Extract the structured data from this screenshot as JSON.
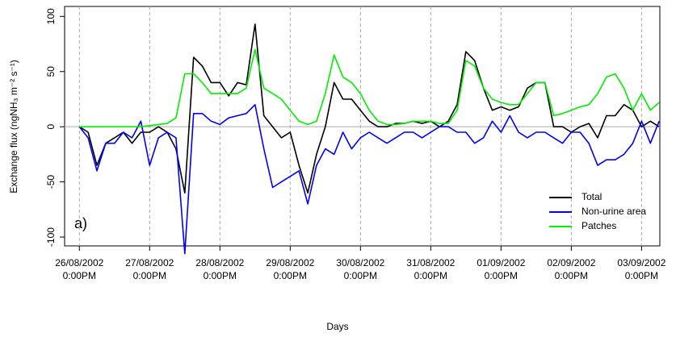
{
  "chart_data": {
    "type": "line",
    "xlabel": "Days",
    "ylabel": "Exchange flux (ngNH₃ m⁻² s⁻¹)",
    "annotation": "a)",
    "legend": "bottomright",
    "grid": true,
    "xlim": [
      -0.21,
      8.26
    ],
    "ylim": [
      -108,
      109
    ],
    "xticks": [
      {
        "value": 0,
        "label": "26/08/2002\n0:00PM"
      },
      {
        "value": 1,
        "label": "27/08/2002\n0:00PM"
      },
      {
        "value": 2,
        "label": "28/08/2002\n0:00PM"
      },
      {
        "value": 3,
        "label": "29/08/2002\n0:00PM"
      },
      {
        "value": 4,
        "label": "30/08/2002\n0:00PM"
      },
      {
        "value": 5,
        "label": "31/08/2002\n0:00PM"
      },
      {
        "value": 6,
        "label": "01/09/2002\n0:00PM"
      },
      {
        "value": 7,
        "label": "02/09/2002\n0:00PM"
      },
      {
        "value": 8,
        "label": "03/09/2002\n0:00PM"
      }
    ],
    "yticks": [
      -100,
      -50,
      0,
      50,
      100
    ],
    "x": [
      0,
      0.125,
      0.25,
      0.375,
      0.5,
      0.625,
      0.75,
      0.875,
      1,
      1.125,
      1.25,
      1.375,
      1.5,
      1.625,
      1.75,
      1.875,
      2,
      2.125,
      2.25,
      2.375,
      2.5,
      2.625,
      2.75,
      2.875,
      3,
      3.125,
      3.25,
      3.375,
      3.5,
      3.625,
      3.75,
      3.875,
      4,
      4.125,
      4.25,
      4.375,
      4.5,
      4.625,
      4.75,
      4.875,
      5,
      5.125,
      5.25,
      5.375,
      5.5,
      5.625,
      5.75,
      5.875,
      6,
      6.125,
      6.25,
      6.375,
      6.5,
      6.625,
      6.75,
      6.875,
      7,
      7.125,
      7.25,
      7.375,
      7.5,
      7.625,
      7.75,
      7.875,
      8,
      8.125,
      8.25
    ],
    "series": [
      {
        "name": "Total",
        "color": "#000000",
        "values": [
          0,
          -5,
          -35,
          -15,
          -10,
          -5,
          -15,
          -5,
          -5,
          0,
          -5,
          -20,
          -60,
          63,
          55,
          40,
          40,
          28,
          40,
          38,
          93,
          10,
          0,
          -10,
          -5,
          -35,
          -60,
          -25,
          0,
          40,
          25,
          25,
          15,
          5,
          0,
          0,
          3,
          3,
          5,
          3,
          5,
          0,
          5,
          20,
          68,
          60,
          35,
          15,
          18,
          15,
          18,
          35,
          40,
          40,
          0,
          0,
          -5,
          0,
          3,
          -10,
          10,
          10,
          20,
          15,
          0,
          5,
          0
        ]
      },
      {
        "name": "Non-urine area",
        "color": "#0000ff",
        "values": [
          0,
          -10,
          -40,
          -15,
          -15,
          -5,
          -10,
          5,
          -35,
          -10,
          -5,
          -10,
          -115,
          12,
          12,
          5,
          2,
          8,
          10,
          12,
          20,
          -20,
          -55,
          -50,
          -45,
          -40,
          -70,
          -35,
          -20,
          -25,
          -5,
          -20,
          -10,
          -5,
          -10,
          -15,
          -10,
          -5,
          -5,
          -10,
          -5,
          0,
          0,
          -5,
          -5,
          -15,
          -10,
          5,
          -5,
          10,
          -5,
          -10,
          -5,
          -5,
          -10,
          -15,
          -5,
          -5,
          -15,
          -35,
          -30,
          -30,
          -25,
          -15,
          5,
          -15,
          5
        ]
      },
      {
        "name": "Patches",
        "color": "#00ee00",
        "values": [
          0,
          0,
          0,
          0,
          0,
          0,
          0,
          0,
          1,
          2,
          3,
          8,
          48,
          48,
          40,
          30,
          30,
          30,
          30,
          35,
          70,
          35,
          30,
          25,
          15,
          5,
          2,
          5,
          30,
          65,
          45,
          40,
          30,
          15,
          5,
          2,
          2,
          3,
          5,
          5,
          5,
          3,
          3,
          15,
          60,
          55,
          35,
          25,
          22,
          20,
          20,
          30,
          40,
          40,
          10,
          12,
          15,
          18,
          20,
          30,
          45,
          48,
          35,
          15,
          30,
          15,
          22
        ]
      }
    ]
  }
}
